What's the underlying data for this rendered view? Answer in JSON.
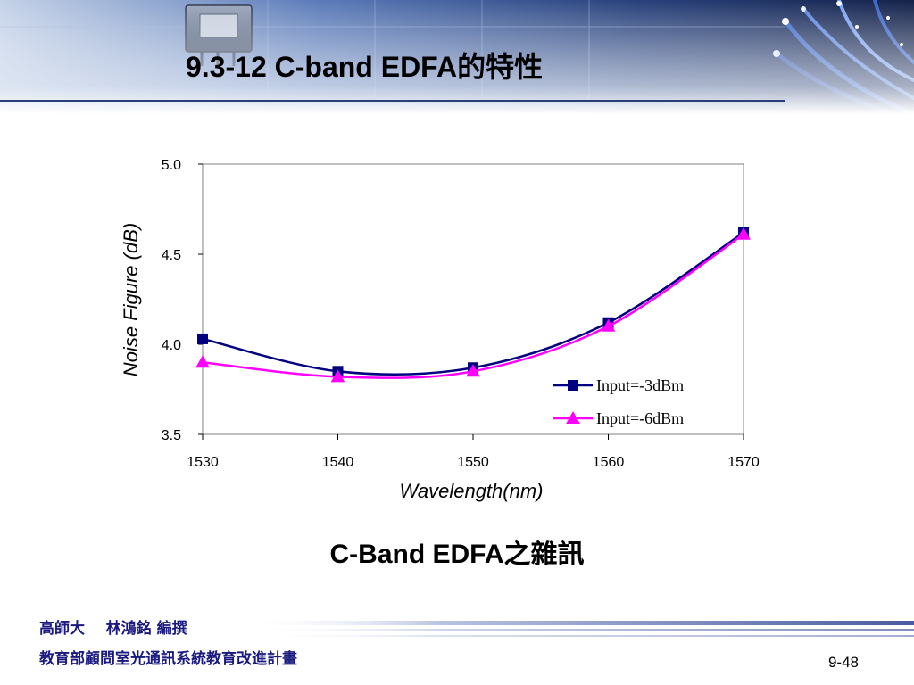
{
  "slide": {
    "title": "9.3-12 C-band EDFA的特性",
    "caption": "C-Band EDFA之雜訊",
    "footer_author": "高師大    林鴻銘 編撰",
    "footer_project": "教育部顧問室光通訊系統教育改進計畫",
    "page_number": "9-48"
  },
  "colors": {
    "banner_dark": "#27407a",
    "banner_light": "#d4deee",
    "series_1": "#000080",
    "series_2": "#ff00ff",
    "footer_text": "#1a1a80"
  },
  "chart_data": {
    "type": "line",
    "title": "",
    "xlabel": "Wavelength(nm)",
    "ylabel": "Noise Figure (dB)",
    "xlim": [
      1530,
      1570
    ],
    "ylim": [
      3.5,
      5.0
    ],
    "xticks": [
      "1530",
      "1540",
      "1550",
      "1560",
      "1570"
    ],
    "yticks": [
      "3.5",
      "4.0",
      "4.5",
      "5.0"
    ],
    "x": [
      1530,
      1540,
      1550,
      1560,
      1570
    ],
    "series": [
      {
        "name": "Input=-3dBm",
        "values": [
          4.03,
          3.85,
          3.87,
          4.12,
          4.62
        ],
        "marker": "square",
        "color": "#000080"
      },
      {
        "name": "Input=-6dBm",
        "values": [
          3.9,
          3.82,
          3.85,
          4.1,
          4.61
        ],
        "marker": "triangle",
        "color": "#ff00ff"
      }
    ],
    "grid": false,
    "legend": "bottom-right"
  }
}
